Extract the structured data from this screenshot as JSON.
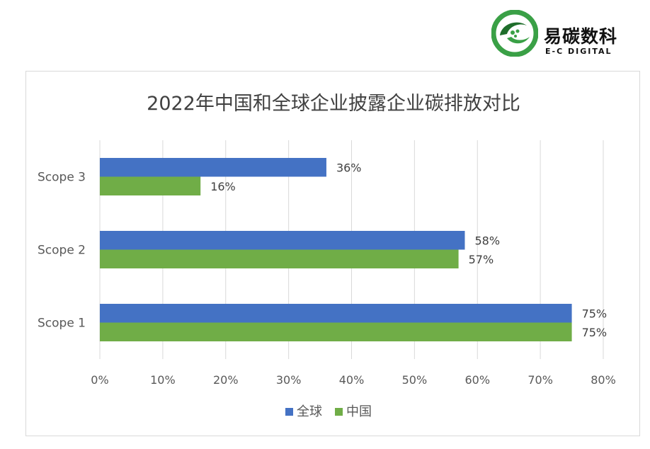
{
  "brand": {
    "name": "易碳数科",
    "subtitle": "E-C DIGITAL",
    "logo_icon": "ec-digital-logo-icon",
    "colors": {
      "green": "#3aa046",
      "dark_green": "#1f6e2b"
    }
  },
  "chart_data": {
    "type": "bar",
    "orientation": "horizontal",
    "title": "2022年中国和全球企业披露企业碳排放对比",
    "categories": [
      "Scope 3",
      "Scope 2",
      "Scope 1"
    ],
    "series": [
      {
        "name": "全球",
        "color": "#4472c4",
        "values": [
          36,
          58,
          75
        ],
        "labels": [
          "36%",
          "58%",
          "75%"
        ]
      },
      {
        "name": "中国",
        "color": "#70ad47",
        "values": [
          16,
          57,
          75
        ],
        "labels": [
          "16%",
          "57%",
          "75%"
        ]
      }
    ],
    "xlim": [
      0,
      80
    ],
    "ticks": [
      0,
      10,
      20,
      30,
      40,
      50,
      60,
      70,
      80
    ],
    "tick_labels": [
      "0%",
      "10%",
      "20%",
      "30%",
      "40%",
      "50%",
      "60%",
      "70%",
      "80%"
    ],
    "grid": true,
    "legend_position": "bottom",
    "xlabel": "",
    "ylabel": ""
  }
}
